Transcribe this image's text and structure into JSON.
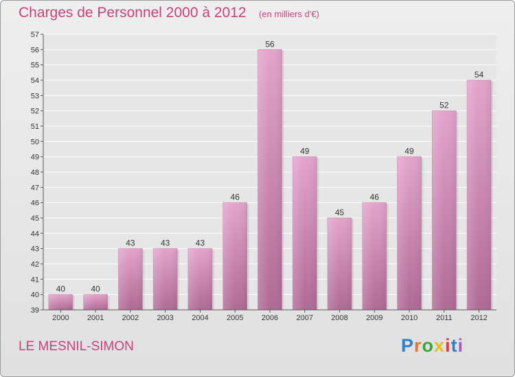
{
  "header": {
    "title": "Charges de Personnel 2000 à 2012",
    "subtitle": "(en milliers d'€)"
  },
  "footer": {
    "commune": "LE MESNIL-SIMON",
    "logo_text": "Proxiti",
    "logo_colors": [
      "#2f7fd0",
      "#e8742a",
      "#3aa63a",
      "#e0c020",
      "#e23a3a",
      "#2f7fd0",
      "#b44fc6"
    ]
  },
  "chart_data": {
    "type": "bar",
    "title": "Charges de Personnel 2000 à 2012",
    "subtitle": "(en milliers d'€)",
    "categories": [
      "2000",
      "2001",
      "2002",
      "2003",
      "2004",
      "2005",
      "2006",
      "2007",
      "2008",
      "2009",
      "2010",
      "2011",
      "2012"
    ],
    "values": [
      40,
      40,
      43,
      43,
      43,
      46,
      56,
      49,
      45,
      46,
      49,
      52,
      54
    ],
    "ylim": [
      39,
      57
    ],
    "yticks": [
      "39",
      "40",
      "41",
      "42",
      "43",
      "44",
      "45",
      "46",
      "47",
      "48",
      "49",
      "50",
      "51",
      "52",
      "53",
      "54",
      "55",
      "56",
      "57"
    ],
    "grid": true,
    "bar_color": "#d98bb8"
  }
}
